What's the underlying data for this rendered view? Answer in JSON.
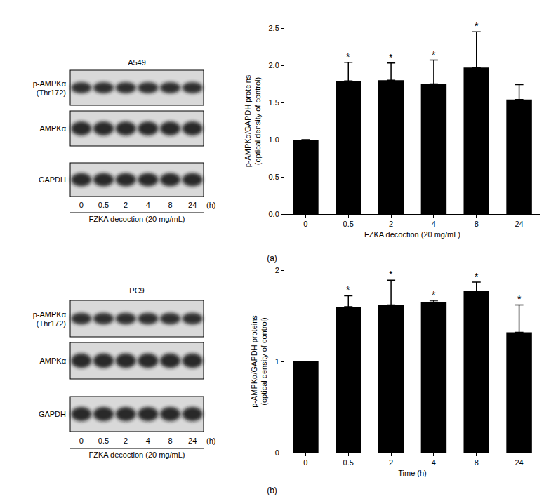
{
  "chart_data": [
    {
      "type": "bar",
      "categories": [
        "0",
        "0.5",
        "2",
        "4",
        "8",
        "24"
      ],
      "values": [
        1.0,
        1.79,
        1.8,
        1.75,
        1.97,
        1.54
      ],
      "errors": [
        0,
        0.25,
        0.23,
        0.32,
        0.48,
        0.2
      ],
      "significance": [
        null,
        "*",
        "*",
        "*",
        "*",
        null
      ],
      "color": "#000000",
      "xlabel": "FZKA decoction (20 mg/mL)",
      "ylabel": [
        "p-AMPKα/GAPDH proteins",
        "(optical density of control)"
      ],
      "ylim": [
        0,
        2.5
      ],
      "yticks": [
        {
          "value": 0,
          "label": "0.0"
        },
        {
          "value": 0.5,
          "label": "0.5"
        },
        {
          "value": 1,
          "label": "1.0"
        },
        {
          "value": 1.5,
          "label": "1.5"
        },
        {
          "value": 2,
          "label": "2.0"
        },
        {
          "value": 2.5,
          "label": "2.5"
        }
      ],
      "grid": false
    },
    {
      "type": "bar",
      "categories": [
        "0",
        "0.5",
        "2",
        "4",
        "8",
        "24"
      ],
      "values": [
        1.0,
        1.6,
        1.62,
        1.65,
        1.77,
        1.32
      ],
      "errors": [
        0,
        0.12,
        0.27,
        0.02,
        0.1,
        0.3
      ],
      "significance": [
        null,
        "*",
        "*",
        "*",
        "*",
        "*"
      ],
      "color": "#000000",
      "xlabel": "Time (h)",
      "ylabel": [
        "p-AMPKα/GAPDH proteins",
        "(optical density of control)"
      ],
      "ylim": [
        0,
        2
      ],
      "yticks": [
        0,
        1,
        2
      ],
      "grid": false
    }
  ],
  "panels": [
    {
      "label": "(a)",
      "blot": {
        "cell_line": "A549",
        "rows": [
          [
            "p-AMPKα",
            "(Thr172)"
          ],
          [
            "AMPKα"
          ],
          [
            "GAPDH"
          ]
        ],
        "lanes": [
          "0",
          "0.5",
          "2",
          "4",
          "8",
          "24"
        ],
        "lane_unit": "(h)",
        "treatment": "FZKA decoction (20 mg/mL)"
      }
    },
    {
      "label": "(b)",
      "blot": {
        "cell_line": "PC9",
        "rows": [
          [
            "p-AMPKα",
            "(Thr172)"
          ],
          [
            "AMPKα"
          ],
          [
            "GAPDH"
          ]
        ],
        "lanes": [
          "0",
          "0.5",
          "2",
          "4",
          "8",
          "24"
        ],
        "lane_unit": "(h)",
        "treatment": "FZKA decoction (20 mg/mL)"
      }
    }
  ]
}
